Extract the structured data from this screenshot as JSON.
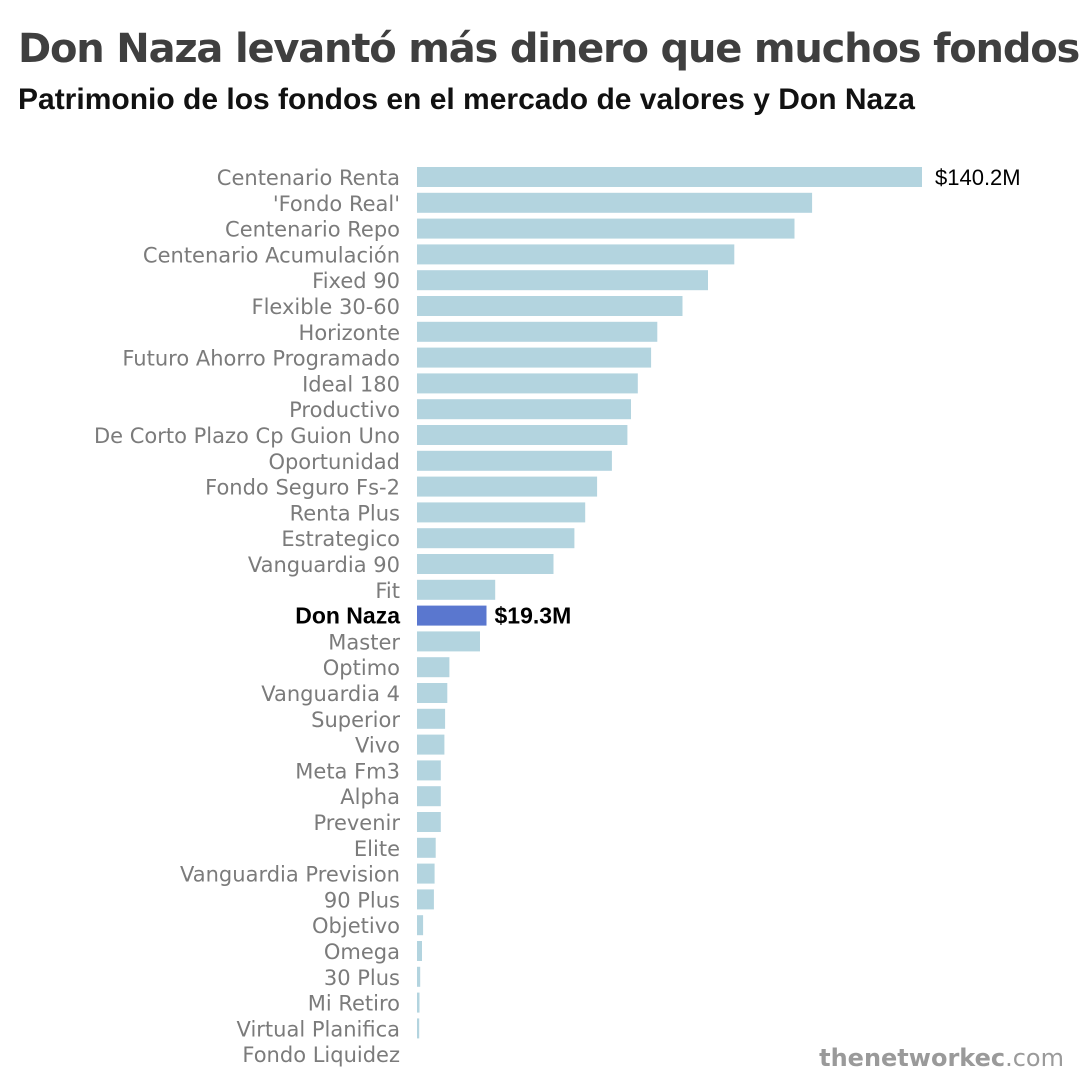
{
  "header": {
    "title": "Don Naza levantó más dinero que muchos fondos",
    "subtitle": "Patrimonio de los fondos en el mercado de valores y Don Naza"
  },
  "source": {
    "name": "thenetworkec",
    "suffix": ".com"
  },
  "colors": {
    "bar": "#b3d4df",
    "highlight_bar": "#5a77cf",
    "label": "#7b7b7b",
    "highlight_label": "#000000",
    "value_label": "#000000"
  },
  "chart_data": {
    "type": "bar",
    "orientation": "horizontal",
    "unit": "millones de USD",
    "xlim": [
      0,
      140.2
    ],
    "grid": false,
    "highlight": "Don Naza",
    "categories": [
      "Centenario Renta",
      "'Fondo Real'",
      "Centenario Repo",
      "Centenario Acumulación",
      "Fixed 90",
      "Flexible 30-60",
      "Horizonte",
      "Futuro Ahorro Programado",
      "Ideal 180",
      "Productivo",
      "De Corto Plazo Cp Guion Uno",
      "Oportunidad",
      "Fondo Seguro Fs-2",
      "Renta Plus",
      "Estrategico",
      "Vanguardia 90",
      "Fit",
      "Don Naza",
      "Master",
      "Optimo",
      "Vanguardia 4",
      "Superior",
      "Vivo",
      "Meta Fm3",
      "Alpha",
      "Prevenir",
      "Elite",
      "Vanguardia Prevision",
      "90 Plus",
      "Objetivo",
      "Omega",
      "30 Plus",
      "Mi Retiro",
      "Virtual Planifica",
      "Fondo Liquidez"
    ],
    "values": [
      140.2,
      109.7,
      104.8,
      88.1,
      80.8,
      73.7,
      66.7,
      65.0,
      61.3,
      59.4,
      58.4,
      54.1,
      50.0,
      46.7,
      43.7,
      37.9,
      21.7,
      19.3,
      17.5,
      9.0,
      8.4,
      7.8,
      7.6,
      6.6,
      6.6,
      6.6,
      5.2,
      4.9,
      4.7,
      1.7,
      1.4,
      0.9,
      0.7,
      0.6,
      0.0
    ],
    "data_labels": [
      {
        "category": "Centenario Renta",
        "text": "$140.2M"
      },
      {
        "category": "Don Naza",
        "text": "$19.3M"
      }
    ]
  }
}
